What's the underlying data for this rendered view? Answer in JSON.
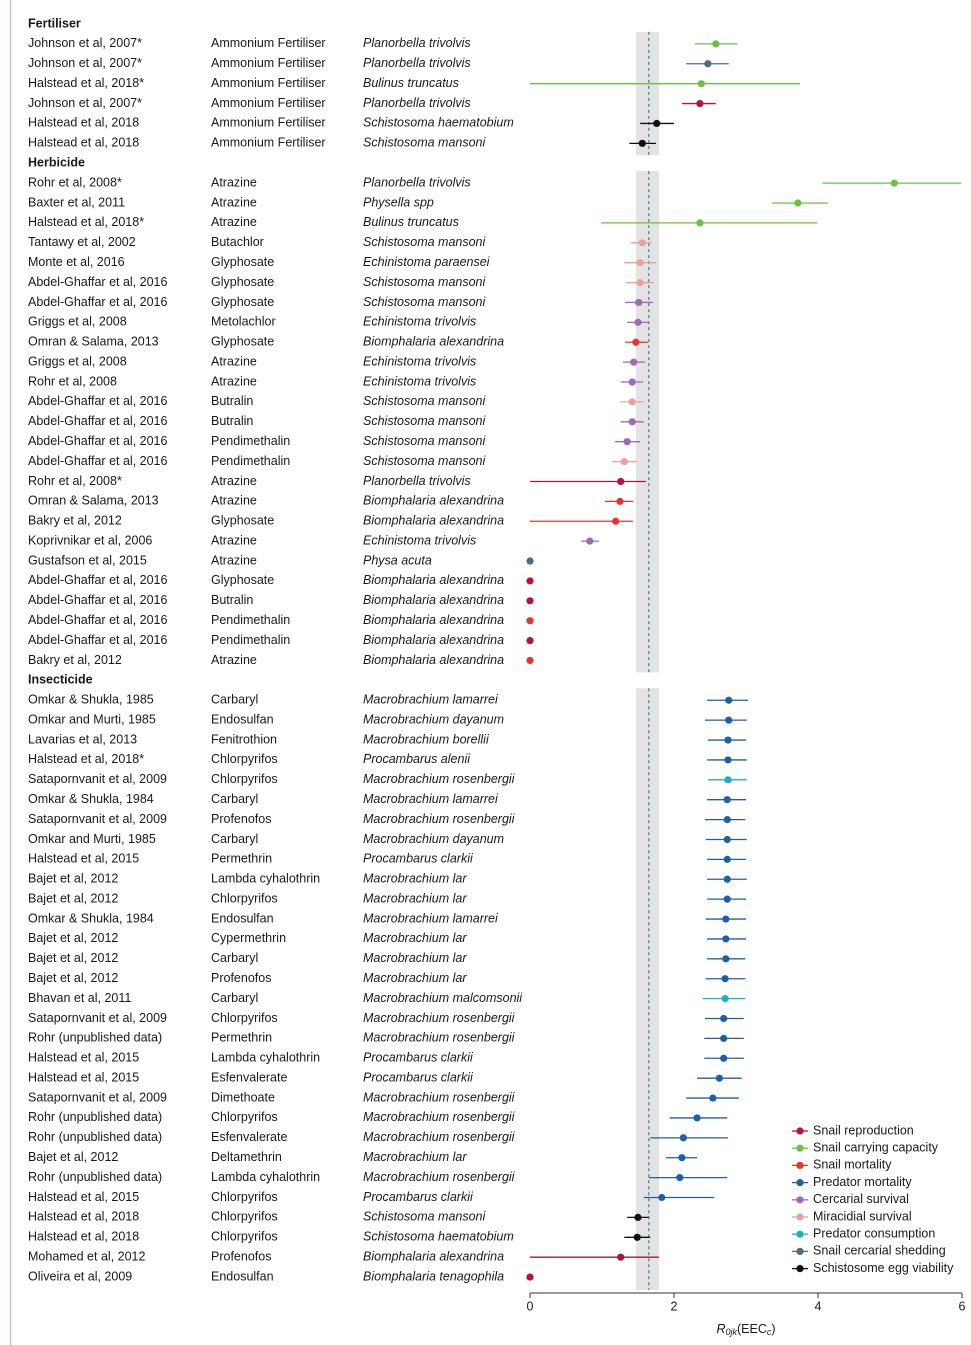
{
  "chart_data": {
    "type": "forest",
    "xlim": [
      0,
      6
    ],
    "xticks": [
      0,
      2,
      4,
      6
    ],
    "xlabel": [
      "R",
      "0jk",
      "(EEC",
      "c",
      ")"
    ],
    "reference": 1.65,
    "reference_band": [
      1.47,
      1.79
    ],
    "outcomes": [
      {
        "name": "Snail reproduction",
        "color": "#b5123f"
      },
      {
        "name": "Snail carrying capacity",
        "color": "#6cbf45"
      },
      {
        "name": "Snail mortality",
        "color": "#e8342e"
      },
      {
        "name": "Predator mortality",
        "color": "#1f5fa8"
      },
      {
        "name": "Cercarial survival",
        "color": "#9b6bb5"
      },
      {
        "name": "Miracidial survival",
        "color": "#e8a29e"
      },
      {
        "name": "Predator consumption",
        "color": "#1bb0c8"
      },
      {
        "name": "Snail cercarial shedding",
        "color": "#4f6b80"
      },
      {
        "name": "Schistosome egg viability",
        "color": "#111111"
      }
    ],
    "groups": [
      {
        "name": "Fertiliser",
        "rows": [
          {
            "study": "Johnson et al, 2007*",
            "chemical": "Ammonium Fertiliser",
            "species": "Planorbella trivolvis",
            "outcome": "Snail carrying capacity",
            "value": 2.58,
            "ci": [
              2.29,
              2.88
            ]
          },
          {
            "study": "Johnson et al, 2007*",
            "chemical": "Ammonium Fertiliser",
            "species": "Planorbella trivolvis",
            "outcome": "Snail cercarial shedding",
            "value": 2.47,
            "ci": [
              2.17,
              2.76
            ]
          },
          {
            "study": "Halstead et al, 2018*",
            "chemical": "Ammonium Fertiliser",
            "species": "Bulinus truncatus",
            "outcome": "Snail carrying capacity",
            "value": 2.38,
            "ci": [
              0,
              3.75
            ]
          },
          {
            "study": "Johnson et al, 2007*",
            "chemical": "Ammonium Fertiliser",
            "species": "Planorbella trivolvis",
            "outcome": "Snail reproduction",
            "value": 2.36,
            "ci": [
              2.11,
              2.58
            ]
          },
          {
            "study": "Halstead et al, 2018",
            "chemical": "Ammonium Fertiliser",
            "species": "Schistosoma haematobium",
            "outcome": "Schistosome egg viability",
            "value": 1.76,
            "ci": [
              1.53,
              2.0
            ]
          },
          {
            "study": "Halstead et al, 2018",
            "chemical": "Ammonium Fertiliser",
            "species": "Schistosoma mansoni",
            "outcome": "Schistosome egg viability",
            "value": 1.56,
            "ci": [
              1.38,
              1.75
            ]
          }
        ]
      },
      {
        "name": "Herbicide",
        "rows": [
          {
            "study": "Rohr et al, 2008*",
            "chemical": "Atrazine",
            "species": "Planorbella trivolvis",
            "outcome": "Snail carrying capacity",
            "value": 5.06,
            "ci": [
              4.06,
              5.99
            ]
          },
          {
            "study": "Baxter et al, 2011",
            "chemical": "Atrazine",
            "species": "Physella spp",
            "outcome": "Snail carrying capacity",
            "value": 3.72,
            "ci": [
              3.36,
              4.14
            ]
          },
          {
            "study": "Halstead et al, 2018*",
            "chemical": "Atrazine",
            "species": "Bulinus truncatus",
            "outcome": "Snail carrying capacity",
            "value": 2.36,
            "ci": [
              0.99,
              3.99
            ]
          },
          {
            "study": "Tantawy et al, 2002",
            "chemical": "Butachlor",
            "species": "Schistosoma mansoni",
            "outcome": "Miracidial survival",
            "value": 1.56,
            "ci": [
              1.4,
              1.69
            ]
          },
          {
            "study": "Monte et al, 2016",
            "chemical": "Glyphosate",
            "species": "Echinistoma paraensei",
            "outcome": "Miracidial survival",
            "value": 1.53,
            "ci": [
              1.31,
              1.75
            ]
          },
          {
            "study": "Abdel-Ghaffar et al, 2016",
            "chemical": "Glyphosate",
            "species": "Schistosoma mansoni",
            "outcome": "Miracidial survival",
            "value": 1.53,
            "ci": [
              1.33,
              1.72
            ]
          },
          {
            "study": "Abdel-Ghaffar et al, 2016",
            "chemical": "Glyphosate",
            "species": "Schistosoma mansoni",
            "outcome": "Cercarial survival",
            "value": 1.51,
            "ci": [
              1.32,
              1.71
            ]
          },
          {
            "study": "Griggs et al, 2008",
            "chemical": "Metolachlor",
            "species": "Echinistoma trivolvis",
            "outcome": "Cercarial survival",
            "value": 1.5,
            "ci": [
              1.35,
              1.65
            ]
          },
          {
            "study": "Omran & Salama, 2013",
            "chemical": "Glyphosate",
            "species": "Biomphalaria alexandrina",
            "outcome": "Snail mortality",
            "value": 1.47,
            "ci": [
              1.32,
              1.64
            ]
          },
          {
            "study": "Griggs et al, 2008",
            "chemical": "Atrazine",
            "species": "Echinistoma trivolvis",
            "outcome": "Cercarial survival",
            "value": 1.44,
            "ci": [
              1.29,
              1.6
            ]
          },
          {
            "study": "Rohr et al, 2008",
            "chemical": "Atrazine",
            "species": "Echinistoma trivolvis",
            "outcome": "Cercarial survival",
            "value": 1.42,
            "ci": [
              1.26,
              1.57
            ]
          },
          {
            "study": "Abdel-Ghaffar et al, 2016",
            "chemical": "Butralin",
            "species": "Schistosoma mansoni",
            "outcome": "Miracidial survival",
            "value": 1.42,
            "ci": [
              1.25,
              1.58
            ]
          },
          {
            "study": "Abdel-Ghaffar et al, 2016",
            "chemical": "Butralin",
            "species": "Schistosoma mansoni",
            "outcome": "Cercarial survival",
            "value": 1.42,
            "ci": [
              1.26,
              1.58
            ]
          },
          {
            "study": "Abdel-Ghaffar et al, 2016",
            "chemical": "Pendimethalin",
            "species": "Schistosoma mansoni",
            "outcome": "Cercarial survival",
            "value": 1.35,
            "ci": [
              1.18,
              1.53
            ]
          },
          {
            "study": "Abdel-Ghaffar et al, 2016",
            "chemical": "Pendimethalin",
            "species": "Schistosoma mansoni",
            "outcome": "Miracidial survival",
            "value": 1.31,
            "ci": [
              1.14,
              1.49
            ]
          },
          {
            "study": "Rohr et al, 2008*",
            "chemical": "Atrazine",
            "species": "Planorbella trivolvis",
            "outcome": "Snail reproduction",
            "value": 1.26,
            "ci": [
              0,
              1.61
            ]
          },
          {
            "study": "Omran & Salama, 2013",
            "chemical": "Atrazine",
            "species": "Biomphalaria alexandrina",
            "outcome": "Snail mortality",
            "value": 1.25,
            "ci": [
              1.04,
              1.43
            ]
          },
          {
            "study": "Bakry et al, 2012",
            "chemical": "Glyphosate",
            "species": "Biomphalaria alexandrina",
            "outcome": "Snail mortality",
            "value": 1.19,
            "ci": [
              0,
              1.43
            ]
          },
          {
            "study": "Koprivnikar et al, 2006",
            "chemical": "Atrazine",
            "species": "Echinistoma trivolvis",
            "outcome": "Cercarial survival",
            "value": 0.83,
            "ci": [
              0.71,
              0.96
            ]
          },
          {
            "study": "Gustafson et al, 2015",
            "chemical": "Atrazine",
            "species": "Physa acuta",
            "outcome": "Snail cercarial shedding",
            "value": 0
          },
          {
            "study": "Abdel-Ghaffar et al, 2016",
            "chemical": "Glyphosate",
            "species": "Biomphalaria alexandrina",
            "outcome": "Snail reproduction",
            "value": 0
          },
          {
            "study": "Abdel-Ghaffar et al, 2016",
            "chemical": "Butralin",
            "species": "Biomphalaria alexandrina",
            "outcome": "Snail reproduction",
            "value": 0
          },
          {
            "study": "Abdel-Ghaffar et al, 2016",
            "chemical": "Pendimethalin",
            "species": "Biomphalaria alexandrina",
            "outcome": "Snail mortality",
            "value": 0
          },
          {
            "study": "Abdel-Ghaffar et al, 2016",
            "chemical": "Pendimethalin",
            "species": "Biomphalaria alexandrina",
            "outcome": "Snail reproduction",
            "value": 0
          },
          {
            "study": "Bakry et al, 2012",
            "chemical": "Atrazine",
            "species": "Biomphalaria alexandrina",
            "outcome": "Snail mortality",
            "value": 0
          }
        ]
      },
      {
        "name": "Insecticide",
        "rows": [
          {
            "study": "Omkar & Shukla, 1985",
            "chemical": "Carbaryl",
            "species": "Macrobrachium lamarrei",
            "outcome": "Predator mortality",
            "value": 2.76,
            "ci": [
              2.46,
              3.03
            ]
          },
          {
            "study": "Omkar and Murti, 1985",
            "chemical": "Endosulfan",
            "species": "Macrobrachium dayanum",
            "outcome": "Predator mortality",
            "value": 2.76,
            "ci": [
              2.43,
              3.01
            ]
          },
          {
            "study": "Lavarias et al, 2013",
            "chemical": "Fenitrothion",
            "species": "Macrobrachium borellii",
            "outcome": "Predator mortality",
            "value": 2.75,
            "ci": [
              2.47,
              3.0
            ]
          },
          {
            "study": "Halstead et al, 2018*",
            "chemical": "Chlorpyrifos",
            "species": "Procambarus alenii",
            "outcome": "Predator mortality",
            "value": 2.75,
            "ci": [
              2.46,
              3.01
            ]
          },
          {
            "study": "Satapornvanit et al, 2009",
            "chemical": "Chlorpyrifos",
            "species": "Macrobrachium rosenbergii",
            "outcome": "Predator consumption",
            "value": 2.75,
            "ci": [
              2.47,
              3.01
            ]
          },
          {
            "study": "Omkar & Shukla, 1984",
            "chemical": "Carbaryl",
            "species": "Macrobrachium lamarrei",
            "outcome": "Predator mortality",
            "value": 2.74,
            "ci": [
              2.46,
              3.0
            ]
          },
          {
            "study": "Satapornvanit et al, 2009",
            "chemical": "Profenofos",
            "species": "Macrobrachium rosenbergii",
            "outcome": "Predator mortality",
            "value": 2.74,
            "ci": [
              2.43,
              2.99
            ]
          },
          {
            "study": "Omkar and Murti, 1985",
            "chemical": "Carbaryl",
            "species": "Macrobrachium dayanum",
            "outcome": "Predator mortality",
            "value": 2.74,
            "ci": [
              2.44,
              3.01
            ]
          },
          {
            "study": "Halstead et al, 2015",
            "chemical": "Permethrin",
            "species": "Procambarus clarkii",
            "outcome": "Predator mortality",
            "value": 2.74,
            "ci": [
              2.46,
              3.0
            ]
          },
          {
            "study": "Bajet et al, 2012",
            "chemical": "Lambda cyhalothrin",
            "species": "Macrobrachium lar",
            "outcome": "Predator mortality",
            "value": 2.74,
            "ci": [
              2.46,
              3.01
            ]
          },
          {
            "study": "Bajet et al, 2012",
            "chemical": "Chlorpyrifos",
            "species": "Macrobrachium lar",
            "outcome": "Predator mortality",
            "value": 2.74,
            "ci": [
              2.46,
              3.0
            ]
          },
          {
            "study": "Omkar & Shukla, 1984",
            "chemical": "Endosulfan",
            "species": "Macrobrachium lamarrei",
            "outcome": "Predator mortality",
            "value": 2.72,
            "ci": [
              2.44,
              3.0
            ]
          },
          {
            "study": "Bajet et al, 2012",
            "chemical": "Cypermethrin",
            "species": "Macrobrachium lar",
            "outcome": "Predator mortality",
            "value": 2.72,
            "ci": [
              2.46,
              3.0
            ]
          },
          {
            "study": "Bajet et al, 2012",
            "chemical": "Carbaryl",
            "species": "Macrobrachium lar",
            "outcome": "Predator mortality",
            "value": 2.72,
            "ci": [
              2.46,
              2.99
            ]
          },
          {
            "study": "Bajet et al, 2012",
            "chemical": "Profenofos",
            "species": "Macrobrachium lar",
            "outcome": "Predator mortality",
            "value": 2.71,
            "ci": [
              2.44,
              2.99
            ]
          },
          {
            "study": "Bhavan et al, 2011",
            "chemical": "Carbaryl",
            "species": "Macrobrachium malcomsonii",
            "outcome": "Predator consumption",
            "value": 2.71,
            "ci": [
              2.4,
              2.99
            ]
          },
          {
            "study": "Satapornvanit et al, 2009",
            "chemical": "Chlorpyrifos",
            "species": "Macrobrachium rosenbergii",
            "outcome": "Predator mortality",
            "value": 2.69,
            "ci": [
              2.43,
              2.97
            ]
          },
          {
            "study": "Rohr (unpublished data)",
            "chemical": "Permethrin",
            "species": "Macrobrachium rosenbergii",
            "outcome": "Predator mortality",
            "value": 2.69,
            "ci": [
              2.42,
              2.97
            ]
          },
          {
            "study": "Halstead et al, 2015",
            "chemical": "Lambda cyhalothrin",
            "species": "Procambarus clarkii",
            "outcome": "Predator mortality",
            "value": 2.69,
            "ci": [
              2.42,
              2.97
            ]
          },
          {
            "study": "Halstead et al, 2015",
            "chemical": "Esfenvalerate",
            "species": "Procambarus clarkii",
            "outcome": "Predator mortality",
            "value": 2.63,
            "ci": [
              2.32,
              2.94
            ]
          },
          {
            "study": "Satapornvanit et al, 2009",
            "chemical": "Dimethoate",
            "species": "Macrobrachium rosenbergii",
            "outcome": "Predator mortality",
            "value": 2.54,
            "ci": [
              2.17,
              2.9
            ]
          },
          {
            "study": "Rohr (unpublished data)",
            "chemical": "Chlorpyrifos",
            "species": "Macrobrachium rosenbergii",
            "outcome": "Predator mortality",
            "value": 2.32,
            "ci": [
              1.94,
              2.74
            ]
          },
          {
            "study": "Rohr (unpublished data)",
            "chemical": "Esfenvalerate",
            "species": "Macrobrachium rosenbergii",
            "outcome": "Predator mortality",
            "value": 2.13,
            "ci": [
              1.67,
              2.75
            ]
          },
          {
            "study": "Bajet et al, 2012",
            "chemical": "Deltamethrin",
            "species": "Macrobrachium lar",
            "outcome": "Predator mortality",
            "value": 2.11,
            "ci": [
              1.89,
              2.32
            ]
          },
          {
            "study": "Rohr (unpublished data)",
            "chemical": "Lambda cyhalothrin",
            "species": "Macrobrachium rosenbergii",
            "outcome": "Predator mortality",
            "value": 2.08,
            "ci": [
              1.65,
              2.74
            ]
          },
          {
            "study": "Halstead et al, 2015",
            "chemical": "Chlorpyrifos",
            "species": "Procambarus clarkii",
            "outcome": "Predator mortality",
            "value": 1.83,
            "ci": [
              1.58,
              2.56
            ]
          },
          {
            "study": "Halstead et al, 2018",
            "chemical": "Chlorpyrifos",
            "species": "Schistosoma mansoni",
            "outcome": "Schistosome egg viability",
            "value": 1.5,
            "ci": [
              1.35,
              1.65
            ]
          },
          {
            "study": "Halstead et al, 2018",
            "chemical": "Chlorpyrifos",
            "species": "Schistosoma haematobium",
            "outcome": "Schistosome egg viability",
            "value": 1.49,
            "ci": [
              1.31,
              1.67
            ]
          },
          {
            "study": "Mohamed et al, 2012",
            "chemical": "Profenofos",
            "species": "Biomphalaria alexandrina",
            "outcome": "Snail reproduction",
            "value": 1.26,
            "ci": [
              0,
              1.79
            ]
          },
          {
            "study": "Oliveira et al, 2009",
            "chemical": "Endosulfan",
            "species": "Biomphalaria tenagophila",
            "outcome": "Snail reproduction",
            "value": 0
          }
        ]
      }
    ]
  }
}
